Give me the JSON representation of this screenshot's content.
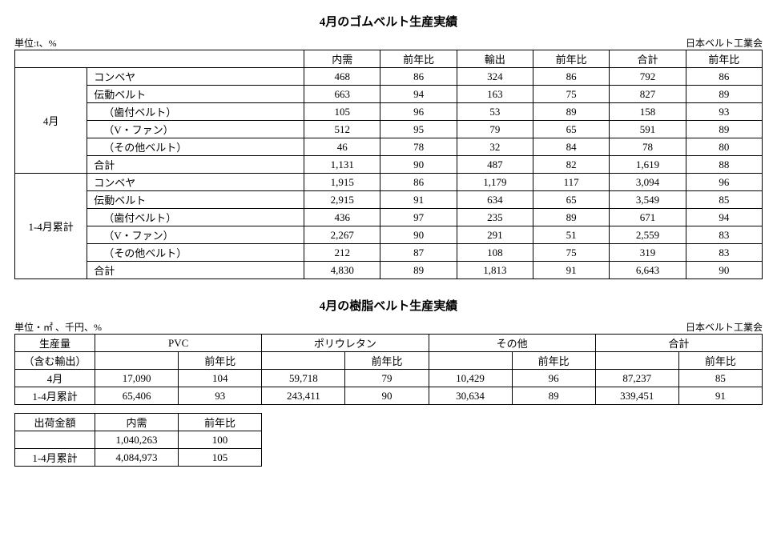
{
  "table1": {
    "title": "4月のゴムベルト生産実績",
    "unit": "単位:t、%",
    "source": "日本ベルト工業会",
    "headers": [
      "内需",
      "前年比",
      "輸出",
      "前年比",
      "合計",
      "前年比"
    ],
    "groups": [
      {
        "period": "4月",
        "rows": [
          {
            "label": "コンベヤ",
            "indent": false,
            "v": [
              "468",
              "86",
              "324",
              "86",
              "792",
              "86"
            ]
          },
          {
            "label": "伝動ベルト",
            "indent": false,
            "v": [
              "663",
              "94",
              "163",
              "75",
              "827",
              "89"
            ]
          },
          {
            "label": "（歯付ベルト）",
            "indent": true,
            "v": [
              "105",
              "96",
              "53",
              "89",
              "158",
              "93"
            ]
          },
          {
            "label": "（V・ファン）",
            "indent": true,
            "v": [
              "512",
              "95",
              "79",
              "65",
              "591",
              "89"
            ]
          },
          {
            "label": "（その他ベルト）",
            "indent": true,
            "v": [
              "46",
              "78",
              "32",
              "84",
              "78",
              "80"
            ]
          },
          {
            "label": "合計",
            "indent": false,
            "v": [
              "1,131",
              "90",
              "487",
              "82",
              "1,619",
              "88"
            ]
          }
        ]
      },
      {
        "period": "1-4月累計",
        "rows": [
          {
            "label": "コンベヤ",
            "indent": false,
            "v": [
              "1,915",
              "86",
              "1,179",
              "117",
              "3,094",
              "96"
            ]
          },
          {
            "label": "伝動ベルト",
            "indent": false,
            "v": [
              "2,915",
              "91",
              "634",
              "65",
              "3,549",
              "85"
            ]
          },
          {
            "label": "（歯付ベルト）",
            "indent": true,
            "v": [
              "436",
              "97",
              "235",
              "89",
              "671",
              "94"
            ]
          },
          {
            "label": "（V・ファン）",
            "indent": true,
            "v": [
              "2,267",
              "90",
              "291",
              "51",
              "2,559",
              "83"
            ]
          },
          {
            "label": "（その他ベルト）",
            "indent": true,
            "v": [
              "212",
              "87",
              "108",
              "75",
              "319",
              "83"
            ]
          },
          {
            "label": "合計",
            "indent": false,
            "v": [
              "4,830",
              "89",
              "1,813",
              "91",
              "6,643",
              "90"
            ]
          }
        ]
      }
    ]
  },
  "table2": {
    "title": "4月の樹脂ベルト生産実績",
    "unit": "単位・㎡ 、千円、%",
    "source": "日本ベルト工業会",
    "row_header1": "生産量",
    "row_header2": "（含む輸出）",
    "groups": [
      "PVC",
      "ポリウレタン",
      "その他",
      "合計"
    ],
    "subhdr": "前年比",
    "rows": [
      {
        "period": "4月",
        "v": [
          "17,090",
          "104",
          "59,718",
          "79",
          "10,429",
          "96",
          "87,237",
          "85"
        ]
      },
      {
        "period": "1-4月累計",
        "v": [
          "65,406",
          "93",
          "243,411",
          "90",
          "30,634",
          "89",
          "339,451",
          "91"
        ]
      }
    ]
  },
  "table3": {
    "row_header": "出荷金額",
    "headers": [
      "内需",
      "前年比"
    ],
    "rows": [
      {
        "period": "",
        "v": [
          "1,040,263",
          "100"
        ]
      },
      {
        "period": "1-4月累計",
        "v": [
          "4,084,973",
          "105"
        ]
      }
    ]
  }
}
